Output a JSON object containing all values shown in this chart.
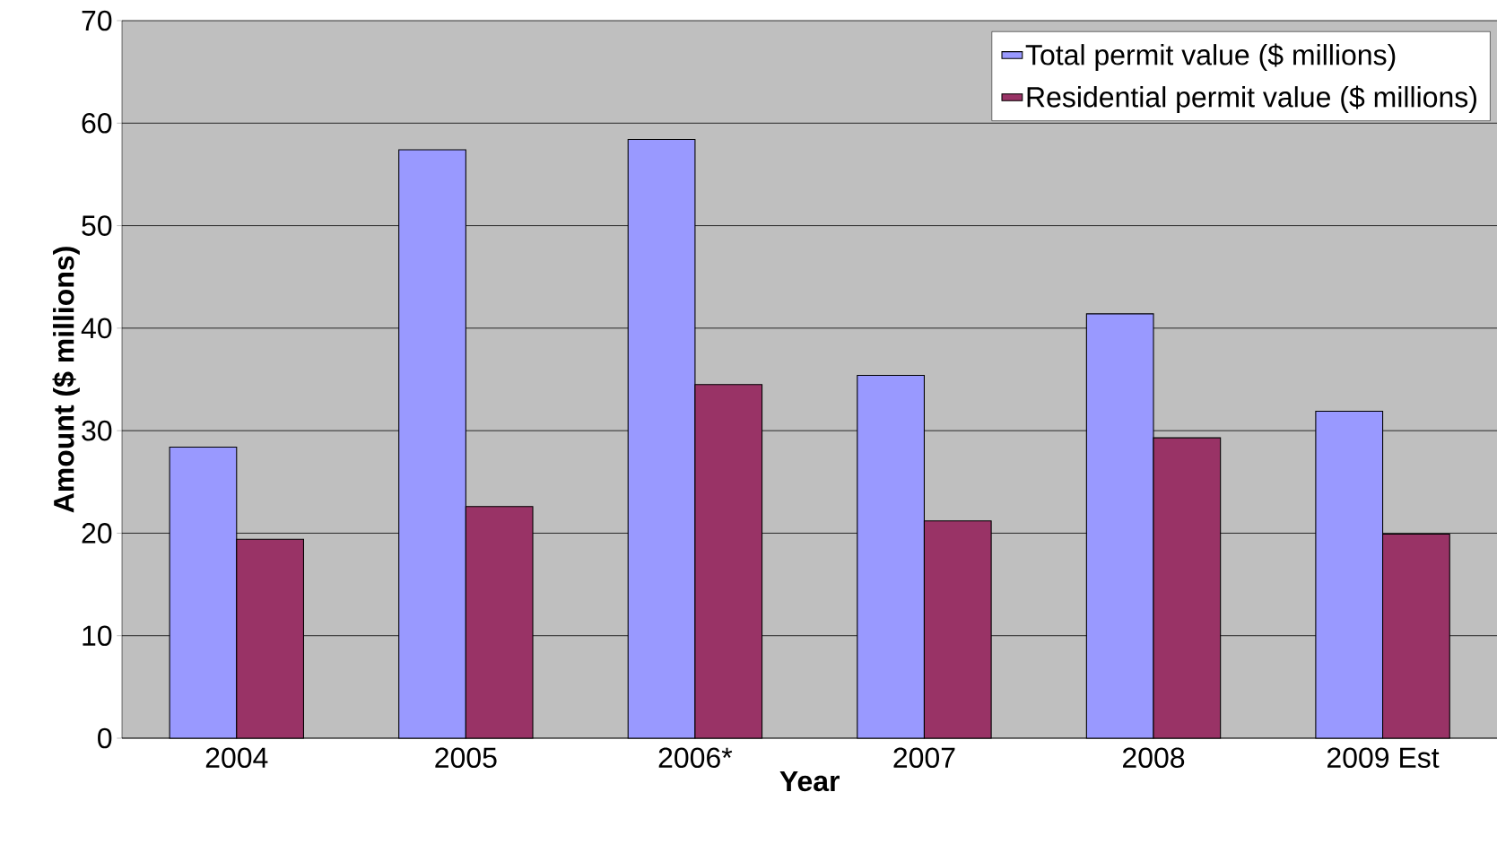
{
  "chart_data": {
    "type": "bar",
    "xlabel": "Year",
    "ylabel": "Amount ($ millions)",
    "categories": [
      "2004",
      "2005",
      "2006*",
      "2007",
      "2008",
      "2009 Est"
    ],
    "series": [
      {
        "name": "Total permit value ($ millions)",
        "color": "#9999ff",
        "values": [
          28.4,
          57.4,
          58.4,
          35.4,
          41.4,
          31.9
        ]
      },
      {
        "name": "Residential permit value ($ millions)",
        "color": "#993366",
        "values": [
          19.4,
          22.6,
          34.5,
          21.2,
          29.3,
          19.9
        ]
      }
    ],
    "ylim": [
      0,
      70
    ],
    "yticks": [
      0,
      10,
      20,
      30,
      40,
      50,
      60,
      70
    ],
    "grid": "y",
    "legend": "top right"
  }
}
